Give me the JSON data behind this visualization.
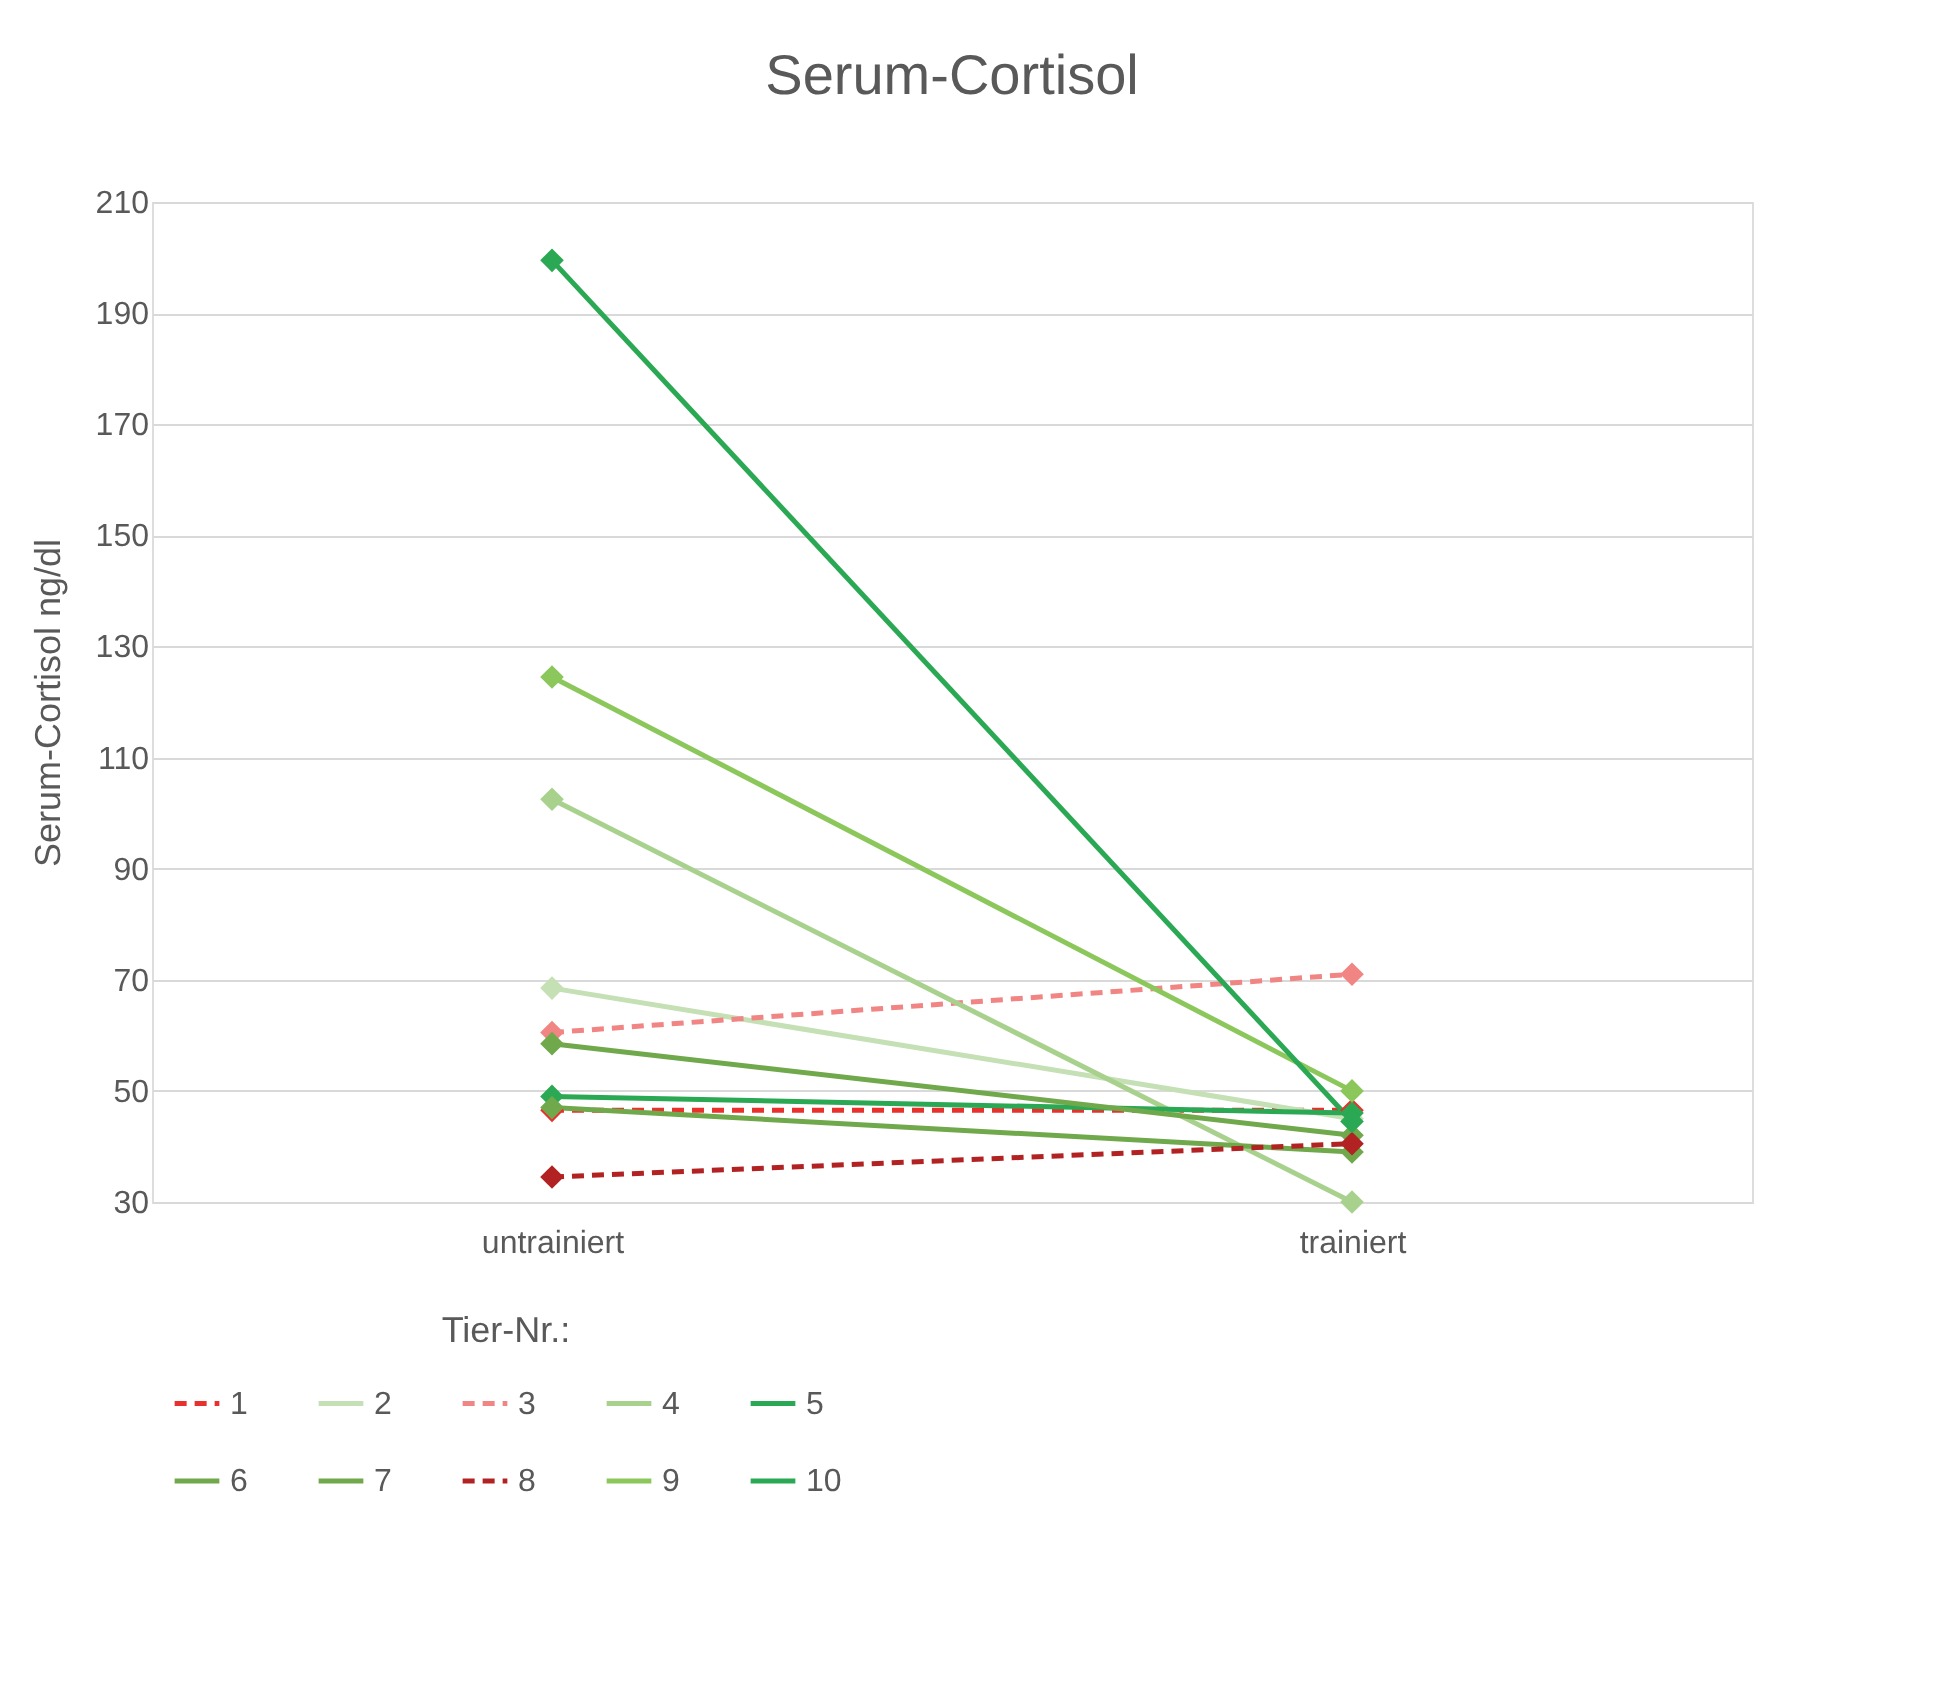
{
  "chart_data": {
    "type": "line",
    "title": "Serum-Cortisol",
    "ylabel": "Serum-Cortisol ng/dl",
    "legend_title": "Tier-Nr.:",
    "categories": [
      "untrainiert",
      "trainiert"
    ],
    "series": [
      {
        "name": "1",
        "color": "#e8302c",
        "values": [
          46.5,
          46.5
        ],
        "line_style": "dashed"
      },
      {
        "name": "2",
        "color": "#c5e0b4",
        "values": [
          68.5,
          45
        ]
      },
      {
        "name": "3",
        "color": "#f08583",
        "values": [
          60.5,
          71
        ],
        "line_style": "dashed"
      },
      {
        "name": "4",
        "color": "#a9d18e",
        "values": [
          102.5,
          30
        ]
      },
      {
        "name": "5",
        "color": "#2aa853",
        "values": [
          49,
          46
        ]
      },
      {
        "name": "6",
        "color": "#70a84c",
        "values": [
          58.5,
          42
        ]
      },
      {
        "name": "7",
        "color": "#70a84c",
        "values": [
          47,
          39
        ]
      },
      {
        "name": "8",
        "color": "#b22222",
        "values": [
          34.5,
          40.5
        ],
        "line_style": "dashed"
      },
      {
        "name": "9",
        "color": "#8bc75a",
        "values": [
          124.5,
          50
        ]
      },
      {
        "name": "10",
        "color": "#2aa853",
        "values": [
          199.5,
          44.5
        ]
      }
    ],
    "ylim": [
      30,
      210
    ],
    "yticks": [
      30,
      50,
      70,
      90,
      110,
      130,
      150,
      170,
      190,
      210
    ],
    "grid": "y",
    "legend": "bottom",
    "marker": "diamond",
    "line_style": "solid"
  }
}
